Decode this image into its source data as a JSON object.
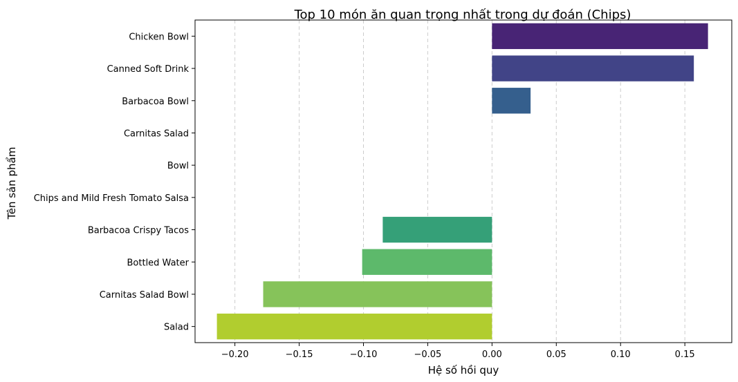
{
  "chart_data": {
    "type": "bar",
    "orientation": "horizontal",
    "title": "Top 10 món ăn quan trọng nhất trong dự đoán (Chips)",
    "xlabel": "Hệ số hồi quy",
    "ylabel": "Tên sản phẩm",
    "categories": [
      "Chicken Bowl",
      "Canned Soft Drink",
      "Barbacoa Bowl",
      "Carnitas Salad",
      "Bowl",
      "Chips and Mild Fresh Tomato Salsa",
      "Barbacoa Crispy Tacos",
      "Bottled Water",
      "Carnitas Salad Bowl",
      "Salad"
    ],
    "values": [
      0.168,
      0.157,
      0.03,
      0.0,
      0.0,
      0.0,
      -0.085,
      -0.101,
      -0.178,
      -0.214
    ],
    "colors": [
      "#482475",
      "#414487",
      "#355f8d",
      "#2a788e",
      "#21918c",
      "#22a884",
      "#35a078",
      "#5db96b",
      "#86c35a",
      "#b1cd2f"
    ],
    "xlim": [
      -0.231,
      0.1865
    ],
    "xticks": [
      -0.2,
      -0.15,
      -0.1,
      -0.05,
      0.0,
      0.05,
      0.1,
      0.15
    ],
    "xtick_labels": [
      "−0.20",
      "−0.15",
      "−0.10",
      "−0.05",
      "0.00",
      "0.05",
      "0.10",
      "0.15"
    ],
    "grid": "x-dashed",
    "legend": "none"
  }
}
